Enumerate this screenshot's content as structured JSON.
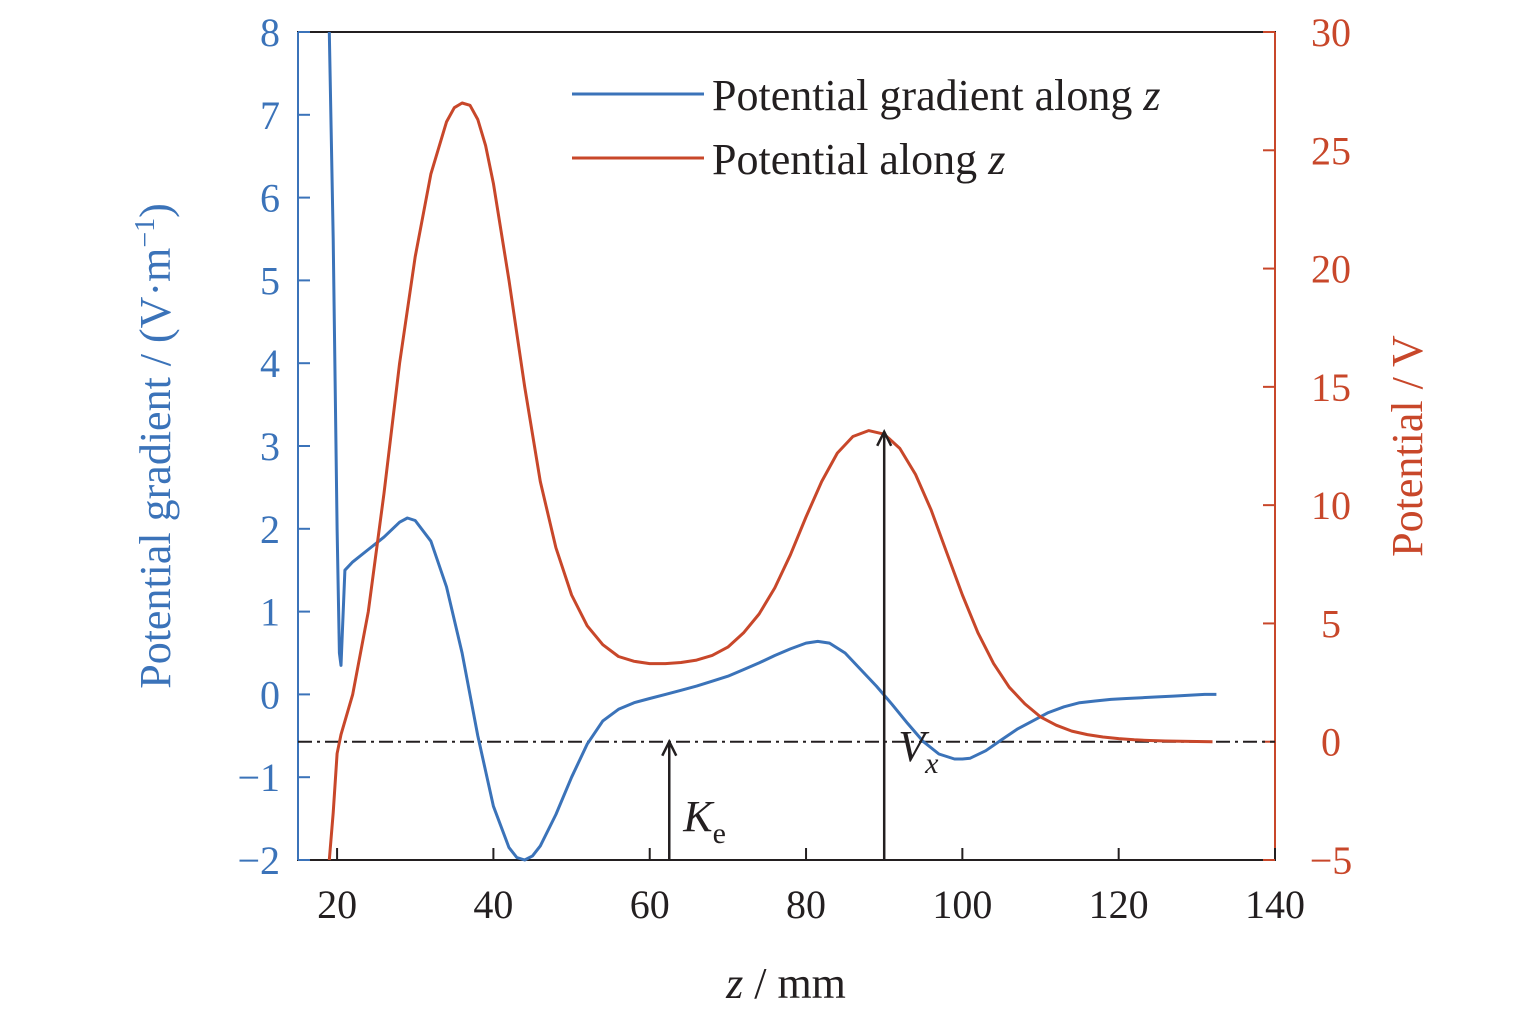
{
  "colors": {
    "left": "#3b73b9",
    "right": "#c8472a",
    "text": "#231f20",
    "frame": "#231f20"
  },
  "chart_data": {
    "type": "line",
    "xlabel": {
      "italic": "z",
      "rest": " / mm"
    },
    "ylabel_left": "Potential gradient / (V·m",
    "ylabel_left_sup": "−1",
    "ylabel_left_end": ")",
    "ylabel_right": "Potential / V",
    "xlim": [
      15,
      140
    ],
    "ylim_left": [
      -2,
      8
    ],
    "ylim_right": [
      -5,
      30
    ],
    "x_ticks": [
      "20",
      "40",
      "60",
      "80",
      "100",
      "120",
      "140"
    ],
    "y_left_ticks": [
      "−2",
      "−1",
      "0",
      "1",
      "2",
      "3",
      "4",
      "5",
      "6",
      "7",
      "8"
    ],
    "y_right_ticks": [
      "−5",
      "0",
      "5",
      "10",
      "15",
      "20",
      "25",
      "30"
    ],
    "grid": false,
    "legend_position": "top-right",
    "legend": [
      {
        "label": "Potential gradient along ",
        "italic": "z",
        "color": "#3b73b9"
      },
      {
        "label": "Potential along ",
        "italic": "z",
        "color": "#c8472a"
      }
    ],
    "reference_line": {
      "axis": "right",
      "y": 0,
      "style": "dash-dot"
    },
    "annotations": [
      {
        "label": "K",
        "sub": "e",
        "x": 62.5,
        "from_right": -5,
        "to_right": 0
      },
      {
        "label": "V",
        "sub": "x",
        "x": 90,
        "from_right": -5,
        "to_right": 13.1
      }
    ],
    "series": [
      {
        "name": "Potential gradient along z",
        "axis": "left",
        "color": "#3b73b9",
        "x": [
          19,
          19.5,
          20,
          20.3,
          20.5,
          21,
          22,
          24,
          26,
          28,
          29,
          30,
          32,
          34,
          36,
          38,
          40,
          42,
          43,
          44,
          45,
          46,
          48,
          50,
          52,
          54,
          56,
          58,
          60,
          62,
          64,
          66,
          68,
          70,
          72,
          74,
          76,
          78,
          80,
          81.5,
          83,
          85,
          87,
          89,
          91,
          93,
          95,
          97,
          99,
          100,
          101,
          103,
          105,
          107,
          109,
          111,
          113,
          115,
          117,
          119,
          121,
          123,
          125,
          127,
          129,
          131,
          132.5
        ],
        "y": [
          8,
          5.5,
          2.0,
          0.5,
          0.35,
          1.5,
          1.6,
          1.75,
          1.9,
          2.08,
          2.13,
          2.1,
          1.85,
          1.3,
          0.5,
          -0.5,
          -1.35,
          -1.85,
          -1.97,
          -2.0,
          -1.95,
          -1.83,
          -1.45,
          -1.0,
          -0.6,
          -0.32,
          -0.18,
          -0.1,
          -0.05,
          0.0,
          0.05,
          0.1,
          0.16,
          0.22,
          0.3,
          0.38,
          0.47,
          0.55,
          0.62,
          0.64,
          0.62,
          0.5,
          0.3,
          0.1,
          -0.12,
          -0.35,
          -0.57,
          -0.72,
          -0.78,
          -0.78,
          -0.77,
          -0.68,
          -0.55,
          -0.42,
          -0.32,
          -0.22,
          -0.15,
          -0.1,
          -0.08,
          -0.06,
          -0.05,
          -0.04,
          -0.03,
          -0.02,
          -0.01,
          0.0,
          0.0
        ]
      },
      {
        "name": "Potential along z",
        "axis": "right",
        "color": "#c8472a",
        "x": [
          19,
          19.5,
          20,
          20.5,
          22,
          24,
          26,
          28,
          30,
          32,
          34,
          35,
          36,
          37,
          38,
          39,
          40,
          42,
          44,
          46,
          48,
          50,
          52,
          54,
          56,
          58,
          60,
          62,
          64,
          66,
          68,
          70,
          72,
          74,
          76,
          78,
          80,
          82,
          84,
          86,
          88,
          90,
          92,
          94,
          96,
          98,
          100,
          102,
          104,
          106,
          108,
          110,
          112,
          114,
          116,
          118,
          120,
          122,
          124,
          126,
          128,
          130,
          132
        ],
        "y": [
          -5,
          -3.0,
          -0.5,
          0.3,
          2.0,
          5.5,
          10.5,
          16.0,
          20.5,
          24.0,
          26.2,
          26.8,
          27.0,
          26.9,
          26.3,
          25.2,
          23.6,
          19.5,
          15.0,
          11.0,
          8.2,
          6.2,
          4.9,
          4.1,
          3.6,
          3.4,
          3.3,
          3.3,
          3.35,
          3.45,
          3.65,
          4.0,
          4.6,
          5.4,
          6.5,
          7.9,
          9.5,
          11.0,
          12.2,
          12.9,
          13.15,
          13.0,
          12.4,
          11.3,
          9.8,
          8.0,
          6.2,
          4.6,
          3.3,
          2.3,
          1.6,
          1.05,
          0.7,
          0.45,
          0.3,
          0.2,
          0.13,
          0.08,
          0.05,
          0.03,
          0.02,
          0.01,
          0.0
        ]
      }
    ]
  }
}
